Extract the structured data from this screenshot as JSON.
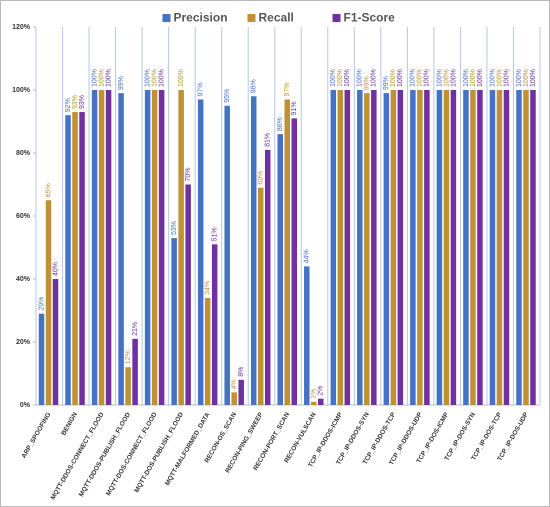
{
  "chart_data": {
    "type": "bar",
    "categories": [
      "ARP_SPOOFING",
      "BENIGN",
      "MQTT-DDOS-CONNECT_FLOOD",
      "MQTT-DDOS-PUBLISH_FLOOD",
      "MQTT-DOS-CONNECT_FLOOD",
      "MQTT-DOS-PUBLISH_FLOOD",
      "MQTT-MALFORMED_DATA",
      "RECON-OS_SCAN",
      "RECON-PING_SWEEP",
      "RECON-PORT_SCAN",
      "RECON-VULSCAN",
      "TCP_IP-DDOS-ICMP",
      "TCP_IP-DDOS-SYN",
      "TCP_IP-DDOS-TCP",
      "TCP_IP-DDOS-UDP",
      "TCP_IP-DOS-ICMP",
      "TCP_IP-DOS-SYN",
      "TCP_IP-DOS-TCP",
      "TCP_IP-DOS-UDP"
    ],
    "series": [
      {
        "name": "Precision",
        "color": "#4472c4",
        "values": [
          29,
          92,
          100,
          99,
          100,
          53,
          97,
          95,
          98,
          86,
          44,
          100,
          100,
          99,
          100,
          100,
          100,
          100,
          100
        ],
        "value_labels": [
          "29%",
          "92%",
          "100%",
          "99%",
          "100%",
          "53%",
          "97%",
          "95%",
          "98%",
          "86%",
          "44%",
          "100%",
          "100%",
          "99%",
          "100%",
          "100%",
          "100%",
          "100%",
          "100%"
        ]
      },
      {
        "name": "Recall",
        "color": "#c09035",
        "values": [
          65,
          93,
          100,
          12,
          100,
          100,
          34,
          4,
          69,
          97,
          1,
          100,
          99,
          100,
          100,
          100,
          100,
          100,
          100
        ],
        "value_labels": [
          "65%",
          "93%",
          "100%",
          "12%",
          "100%",
          "100%",
          "34%",
          "4%",
          "69%",
          "97%",
          "1%",
          "100%",
          "99%",
          "100%",
          "100%",
          "100%",
          "100%",
          "100%",
          "100%"
        ]
      },
      {
        "name": "F1-Score",
        "color": "#7030a0",
        "values": [
          40,
          93,
          100,
          21,
          100,
          70,
          51,
          8,
          81,
          91,
          2,
          100,
          100,
          100,
          100,
          100,
          100,
          100,
          100
        ],
        "value_labels": [
          "40%",
          "93%",
          "100%",
          "21%",
          "100%",
          "70%",
          "51%",
          "8%",
          "81%",
          "91%",
          "2%",
          "100%",
          "100%",
          "100%",
          "100%",
          "100%",
          "100%",
          "100%",
          "100%"
        ]
      }
    ],
    "ylim": [
      0,
      120
    ],
    "yticks": [
      {
        "value": 0,
        "label": "0%"
      },
      {
        "value": 20,
        "label": "20%"
      },
      {
        "value": 40,
        "label": "40%"
      },
      {
        "value": 60,
        "label": "60%"
      },
      {
        "value": 80,
        "label": "80%"
      },
      {
        "value": 100,
        "label": "100%"
      },
      {
        "value": 120,
        "label": "120%"
      }
    ],
    "legend": "top"
  }
}
